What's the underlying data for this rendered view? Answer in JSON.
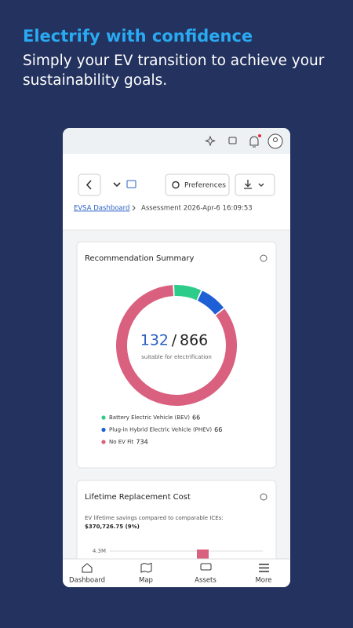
{
  "header": {
    "title": "Electrify with confidence",
    "subtitle": [
      "Simply your EV transition to achieve your",
      "sustainability goals."
    ]
  },
  "toolbar": {
    "preferences": "Preferences"
  },
  "breadcrumb": {
    "link": "EVSA Dashboard",
    "current": "Assessment 2026-Apr-6 16:09:53"
  },
  "summary": {
    "title": "Recommendation Summary",
    "suitable": 132,
    "separator": "/",
    "total": 866,
    "caption": "suitable for electrification",
    "series": [
      {
        "name": "Battery Electric Vehicle (BEV)",
        "value": 66,
        "color": "#2ecc8a"
      },
      {
        "name": "Plug-in Hybrid Electric Vehicle (PHEV)",
        "value": 66,
        "color": "#1f5fd6"
      },
      {
        "name": "No EV Fit",
        "value": 734,
        "color": "#d9607f"
      }
    ]
  },
  "cost": {
    "title": "Lifetime Replacement Cost",
    "description": "EV lifetime savings compared to comparable ICEs:",
    "amount": "$370,726.75 (9%)",
    "yticks": [
      {
        "value": 4300000,
        "label": "4.3M"
      }
    ]
  },
  "nav": [
    "Dashboard",
    "Map",
    "Assets",
    "More"
  ]
}
